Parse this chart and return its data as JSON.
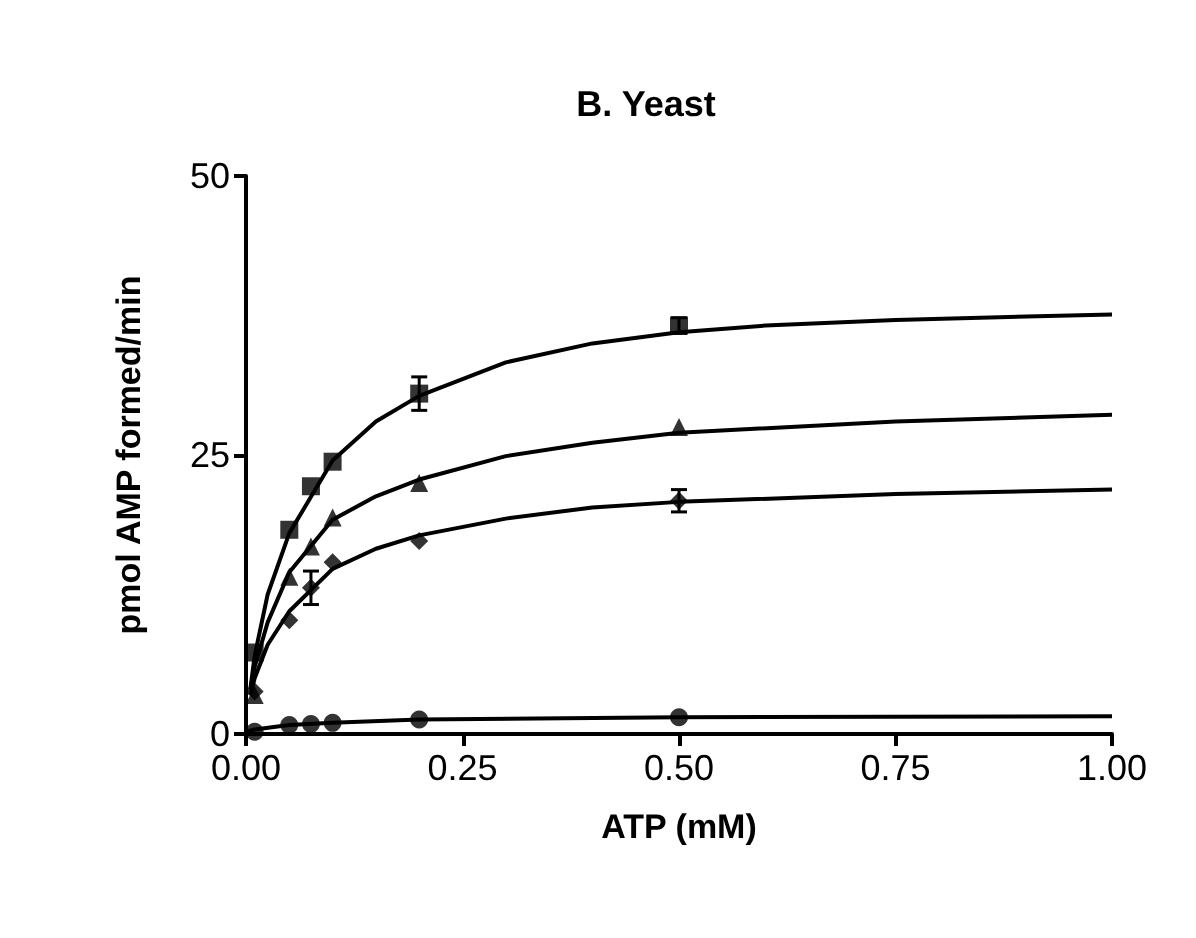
{
  "chart_data": {
    "type": "scatter",
    "title": "B. Yeast",
    "xlabel": "ATP (mM)",
    "ylabel": "pmol AMP formed/min",
    "xlim": [
      0,
      1
    ],
    "xticks": [
      {
        "value": 0,
        "label": "0.00"
      },
      0.25,
      {
        "value": 0.5,
        "label": "0.50"
      },
      0.75,
      {
        "value": 1,
        "label": "1.00"
      }
    ],
    "ylim": [
      0,
      50
    ],
    "yticks": [
      0,
      25,
      50
    ],
    "grid": false,
    "series": [
      {
        "marker": "square",
        "color": "#000000",
        "x": [
          0.01,
          0.05,
          0.075,
          0.1,
          0.2,
          0.5
        ],
        "values": [
          7.3,
          18.3,
          22.2,
          24.4,
          30.5,
          36.6
        ],
        "errors": [
          null,
          null,
          null,
          null,
          1.5,
          0.7
        ]
      },
      {
        "marker": "triangle",
        "color": "#000000",
        "x": [
          0.01,
          0.05,
          0.075,
          0.1,
          0.2,
          0.5
        ],
        "values": [
          3.5,
          14.1,
          16.8,
          19.4,
          22.5,
          27.5
        ],
        "errors": [
          null,
          null,
          null,
          null,
          null,
          null
        ]
      },
      {
        "marker": "diamond",
        "color": "#000000",
        "x": [
          0.01,
          0.05,
          0.075,
          0.1,
          0.2,
          0.5
        ],
        "values": [
          3.8,
          10.2,
          13.1,
          15.4,
          17.3,
          20.9
        ],
        "errors": [
          null,
          null,
          1.5,
          null,
          null,
          1
        ]
      },
      {
        "marker": "circle",
        "color": "#000000",
        "x": [
          0.01,
          0.05,
          0.075,
          0.1,
          0.2,
          0.5
        ],
        "values": [
          0.2,
          0.8,
          0.9,
          1.0,
          1.3,
          1.5
        ],
        "errors": [
          null,
          null,
          null,
          null,
          null,
          null
        ]
      },
      {
        "type": "line",
        "marker": "none",
        "line_style": "solid",
        "color": "#000000",
        "x": [
          0.005,
          0.01,
          0.025,
          0.05,
          0.1,
          0.15,
          0.2,
          0.3,
          0.4,
          0.5,
          0.6,
          0.75,
          1.0
        ],
        "values": [
          4,
          7,
          12.5,
          18,
          24.5,
          28,
          30.3,
          33.3,
          35,
          36,
          36.6,
          37.1,
          37.6
        ]
      },
      {
        "type": "line",
        "marker": "none",
        "line_style": "solid",
        "color": "#000000",
        "x": [
          0.005,
          0.01,
          0.025,
          0.05,
          0.1,
          0.15,
          0.2,
          0.3,
          0.4,
          0.5,
          0.75,
          1.0
        ],
        "values": [
          4,
          6,
          10,
          14.5,
          19.2,
          21.3,
          22.8,
          24.9,
          26.1,
          27,
          28,
          28.6
        ]
      },
      {
        "type": "line",
        "marker": "none",
        "line_style": "solid",
        "color": "#000000",
        "x": [
          0.005,
          0.01,
          0.025,
          0.05,
          0.1,
          0.15,
          0.2,
          0.3,
          0.4,
          0.5,
          0.75,
          1.0
        ],
        "values": [
          3.5,
          5,
          8,
          11,
          14.8,
          16.6,
          17.8,
          19.3,
          20.3,
          20.8,
          21.5,
          21.9
        ]
      },
      {
        "type": "line",
        "marker": "none",
        "line_style": "solid",
        "color": "#000000",
        "x": [
          0,
          0.01,
          0.05,
          0.1,
          0.2,
          0.5,
          1.0
        ],
        "values": [
          0.2,
          0.4,
          0.8,
          1.0,
          1.3,
          1.5,
          1.6
        ]
      }
    ]
  }
}
